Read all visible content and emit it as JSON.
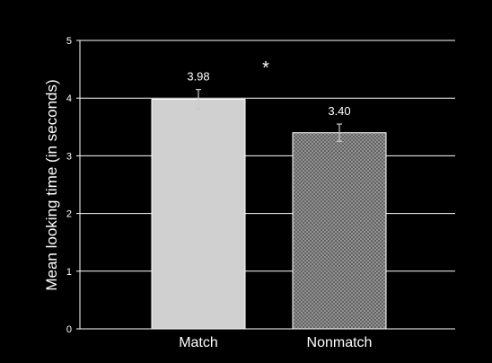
{
  "chart_data": {
    "type": "bar",
    "title": "",
    "xlabel": "",
    "ylabel": "Mean looking time (in seconds)",
    "categories": [
      "Match",
      "Nonmatch"
    ],
    "values": [
      3.98,
      3.4
    ],
    "value_labels": [
      "3.98",
      "3.40"
    ],
    "error": [
      0.17,
      0.15
    ],
    "ylim": [
      0,
      5
    ],
    "yticks": [
      0,
      1,
      2,
      3,
      4,
      5
    ],
    "ytick_labels": [
      "0",
      "1",
      "2",
      "3",
      "4",
      "5"
    ],
    "grid": true,
    "significance_marker": "*",
    "colors": {
      "background": "#000000",
      "axis": "#ffffff",
      "gridline": "#ffffff",
      "text": "#ffffff",
      "bar_fills": [
        "#d0d0d0",
        "#707070"
      ],
      "bar_stroke": "#ffffff",
      "error_bar": "#c8c8c8"
    },
    "bar_patterns": [
      "solid",
      "crosshatch"
    ]
  }
}
